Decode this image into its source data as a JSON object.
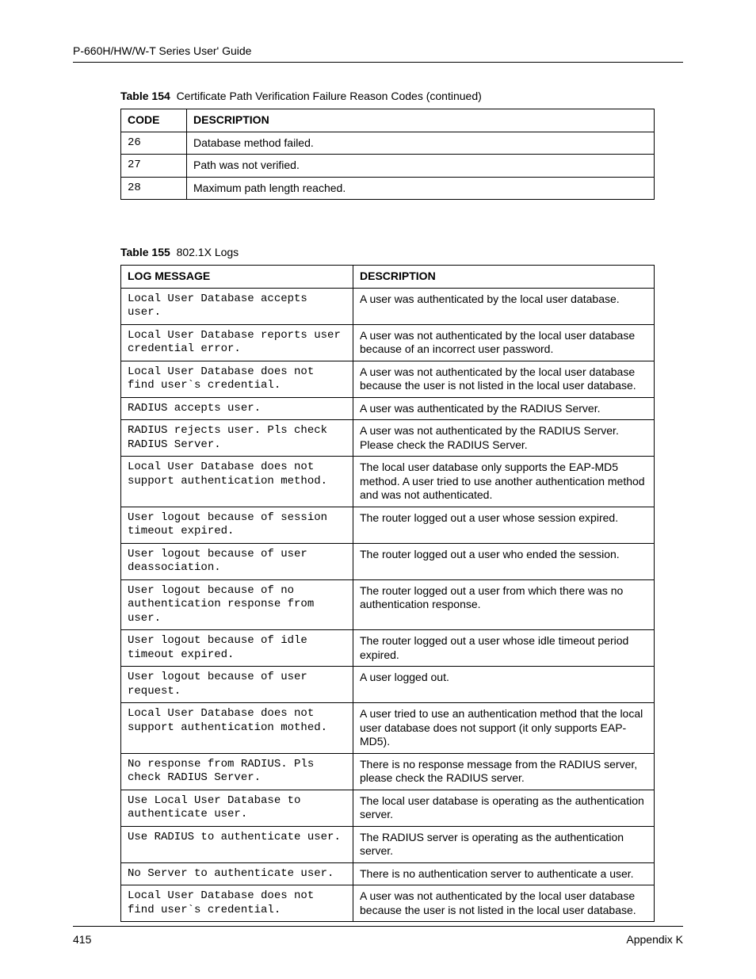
{
  "header": {
    "running_head": "P-660H/HW/W-T Series User' Guide"
  },
  "table154": {
    "caption_num": "Table 154",
    "caption_text": "Certificate Path Verification Failure Reason Codes (continued)",
    "head_code": "CODE",
    "head_desc": "DESCRIPTION",
    "rows": [
      {
        "code": "26",
        "desc": "Database method failed."
      },
      {
        "code": "27",
        "desc": "Path was not verified."
      },
      {
        "code": "28",
        "desc": "Maximum path length reached."
      }
    ]
  },
  "table155": {
    "caption_num": "Table 155",
    "caption_text": "802.1X Logs",
    "head_log": "LOG MESSAGE",
    "head_desc": "DESCRIPTION",
    "rows": [
      {
        "log": "Local User Database accepts user.",
        "desc": "A user was authenticated by the local user database."
      },
      {
        "log": "Local User Database reports user credential error.",
        "desc": "A user was not authenticated by the local user database because of an incorrect user password."
      },
      {
        "log": "Local User Database does not find user`s credential.",
        "desc": "A user was not authenticated by the local user database because the user is not listed in the local user database."
      },
      {
        "log": "RADIUS accepts user.",
        "desc": "A user was authenticated by the RADIUS Server."
      },
      {
        "log": "RADIUS rejects user. Pls check RADIUS Server.",
        "desc": "A user was not authenticated by the RADIUS Server. Please check the RADIUS Server."
      },
      {
        "log": "Local User Database does not support authentication method.",
        "desc": "The local user database only supports the EAP-MD5 method. A user tried to use another authentication method and was not authenticated."
      },
      {
        "log": "User logout because of session timeout expired.",
        "desc": "The router logged out a user whose session expired."
      },
      {
        "log": "User logout because of user deassociation.",
        "desc": "The router logged out a user who ended the session."
      },
      {
        "log": "User logout because of no authentication response from user.",
        "desc": "The router logged out a user from which there was no authentication response."
      },
      {
        "log": "User logout because of idle timeout expired.",
        "desc": "The router logged out a user whose idle timeout period expired."
      },
      {
        "log": "User logout because of user request.",
        "desc": "A user logged out."
      },
      {
        "log": "Local User Database does not support authentication mothed.",
        "desc": "A user tried to use an authentication method that the local user database does not support (it only supports EAP-MD5)."
      },
      {
        "log": "No response from RADIUS. Pls check RADIUS Server.",
        "desc": "There is no response message from the RADIUS server, please check the RADIUS server."
      },
      {
        "log": "Use Local User Database to authenticate user.",
        "desc": "The local user database is operating as the authentication server."
      },
      {
        "log": "Use RADIUS to authenticate user.",
        "desc": "The RADIUS server is operating as the authentication server."
      },
      {
        "log": "No Server to authenticate user.",
        "desc": "There is no authentication server to authenticate a user."
      },
      {
        "log": "Local User Database does not find user`s credential.",
        "desc": "A user was not authenticated by the local user database because the user is not listed in the local user database."
      }
    ]
  },
  "footer": {
    "page_number": "415",
    "appendix": "Appendix K"
  }
}
